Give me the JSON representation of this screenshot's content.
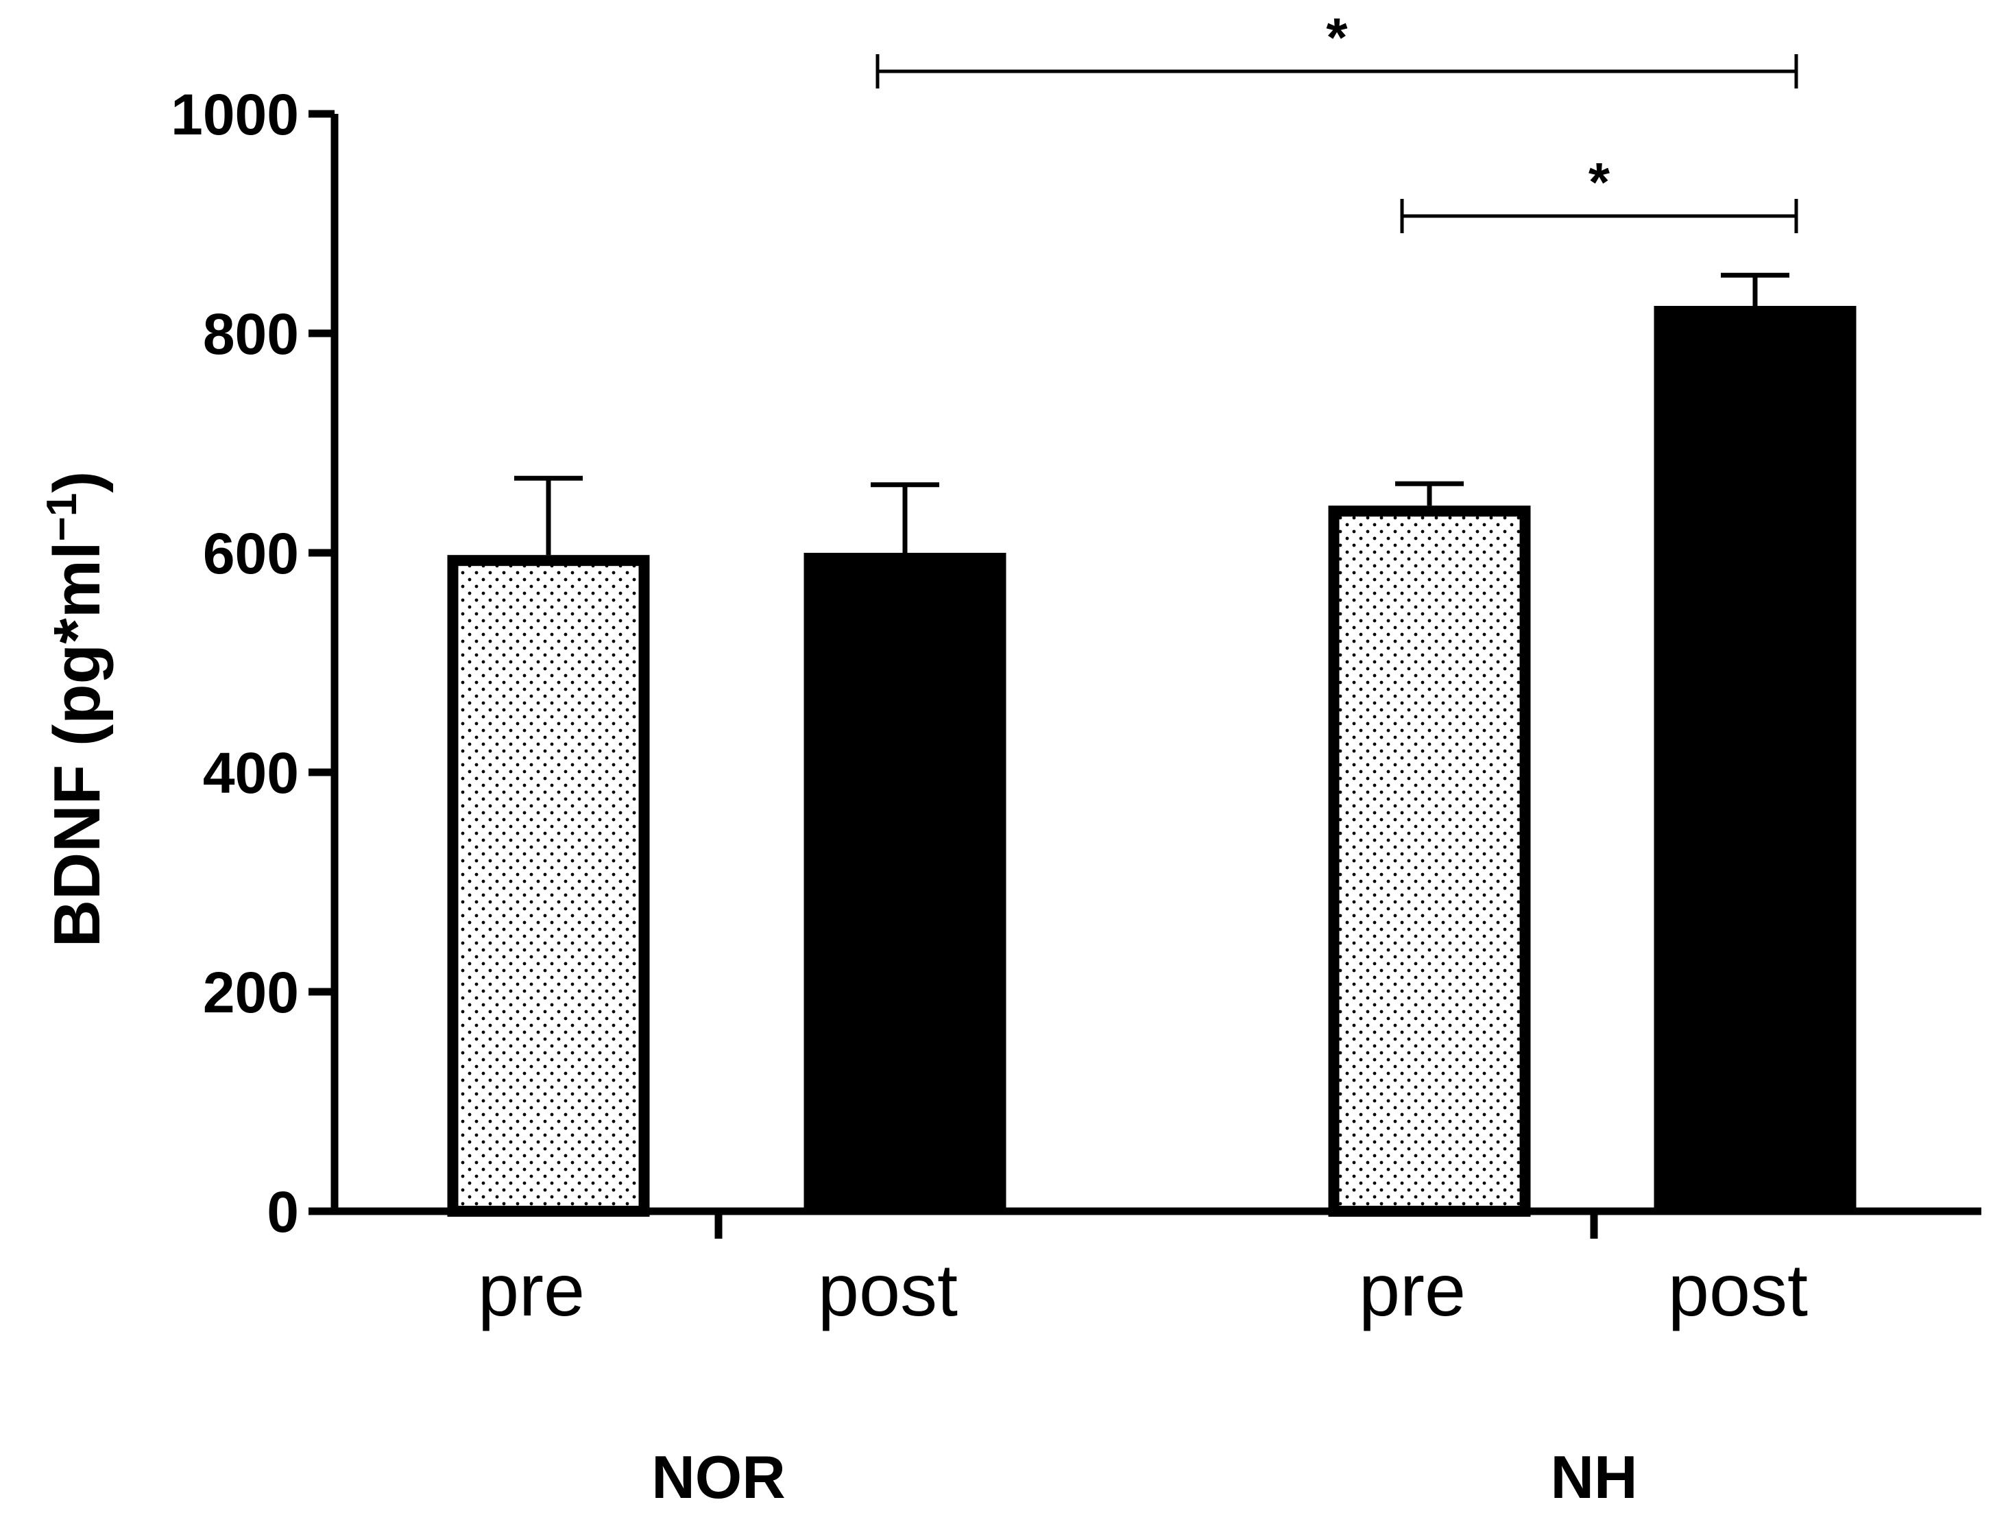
{
  "chart_data": {
    "type": "bar",
    "ylabel": "BDNF (pg*ml",
    "ylabel_sup": "−1",
    "ylabel_close": ")",
    "ylim": [
      0,
      1000
    ],
    "yticks": [
      "0",
      "200",
      "400",
      "600",
      "800",
      "1000"
    ],
    "groups": [
      {
        "name": "NOR",
        "bars": [
          {
            "category": "pre",
            "value": 598,
            "error": 70,
            "fill": "dotted"
          },
          {
            "category": "post",
            "value": 600,
            "error": 62,
            "fill": "solid"
          }
        ]
      },
      {
        "name": "NH",
        "bars": [
          {
            "category": "pre",
            "value": 643,
            "error": 20,
            "fill": "dotted"
          },
          {
            "category": "post",
            "value": 825,
            "error": 28,
            "fill": "solid"
          }
        ]
      }
    ],
    "significance": [
      {
        "from": "NOR post",
        "to": "NH post",
        "label": "*"
      },
      {
        "from": "NH pre",
        "to": "NH post",
        "label": "*"
      }
    ],
    "colors": {
      "solid": "#000000",
      "dotted_bg": "#ffffff",
      "edge": "#000000"
    },
    "grid": false,
    "legend": "none"
  }
}
